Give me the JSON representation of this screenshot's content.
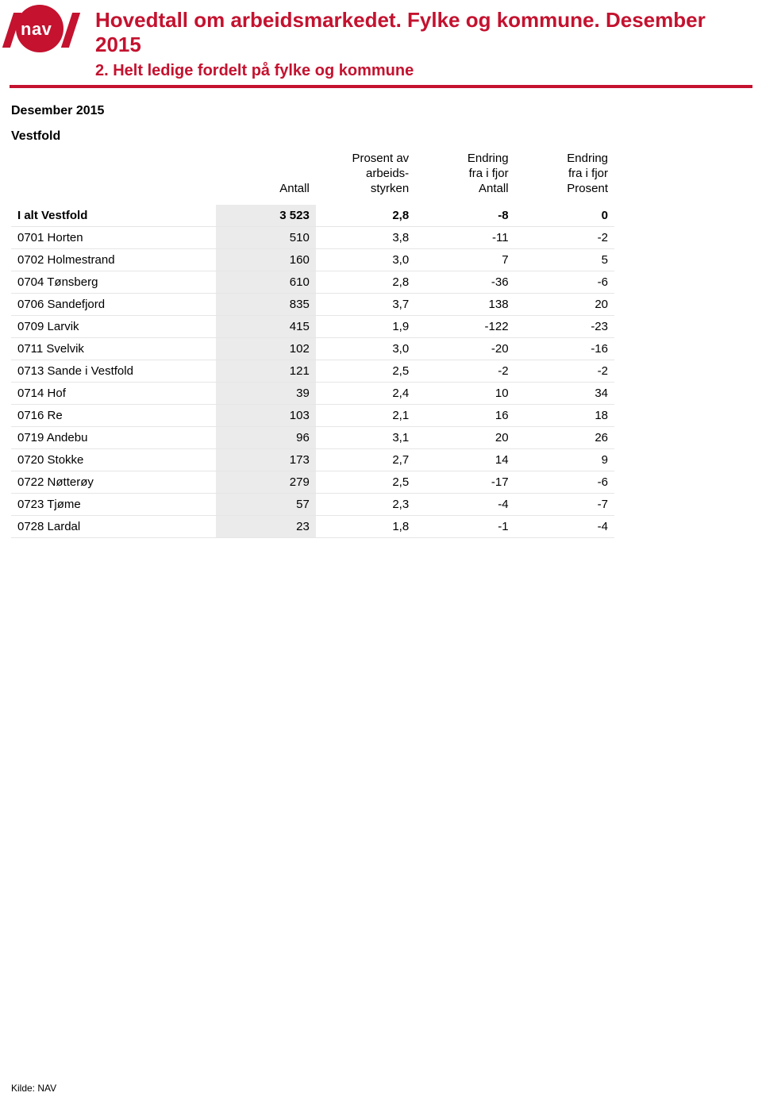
{
  "header": {
    "logo_text": "nav",
    "title": "Hovedtall om arbeidsmarkedet. Fylke og kommune. Desember 2015",
    "subtitle": "2. Helt ledige fordelt på fylke og kommune"
  },
  "period": "Desember 2015",
  "region": "Vestfold",
  "columns": {
    "c1": "",
    "c2": "Antall",
    "c3_l1": "Prosent av",
    "c3_l2": "arbeids-",
    "c3_l3": "styrken",
    "c4_l1": "Endring",
    "c4_l2": "fra i fjor",
    "c4_l3": "Antall",
    "c5_l1": "Endring",
    "c5_l2": "fra i fjor",
    "c5_l3": "Prosent"
  },
  "rows": [
    {
      "label": "I alt Vestfold",
      "antall": "3 523",
      "prosent": "2,8",
      "endr_antall": "-8",
      "endr_prosent": "0",
      "total": true
    },
    {
      "label": "0701 Horten",
      "antall": "510",
      "prosent": "3,8",
      "endr_antall": "-11",
      "endr_prosent": "-2"
    },
    {
      "label": "0702 Holmestrand",
      "antall": "160",
      "prosent": "3,0",
      "endr_antall": "7",
      "endr_prosent": "5"
    },
    {
      "label": "0704 Tønsberg",
      "antall": "610",
      "prosent": "2,8",
      "endr_antall": "-36",
      "endr_prosent": "-6"
    },
    {
      "label": "0706 Sandefjord",
      "antall": "835",
      "prosent": "3,7",
      "endr_antall": "138",
      "endr_prosent": "20"
    },
    {
      "label": "0709 Larvik",
      "antall": "415",
      "prosent": "1,9",
      "endr_antall": "-122",
      "endr_prosent": "-23"
    },
    {
      "label": "0711 Svelvik",
      "antall": "102",
      "prosent": "3,0",
      "endr_antall": "-20",
      "endr_prosent": "-16"
    },
    {
      "label": "0713 Sande i Vestfold",
      "antall": "121",
      "prosent": "2,5",
      "endr_antall": "-2",
      "endr_prosent": "-2"
    },
    {
      "label": "0714 Hof",
      "antall": "39",
      "prosent": "2,4",
      "endr_antall": "10",
      "endr_prosent": "34"
    },
    {
      "label": "0716 Re",
      "antall": "103",
      "prosent": "2,1",
      "endr_antall": "16",
      "endr_prosent": "18"
    },
    {
      "label": "0719 Andebu",
      "antall": "96",
      "prosent": "3,1",
      "endr_antall": "20",
      "endr_prosent": "26"
    },
    {
      "label": "0720 Stokke",
      "antall": "173",
      "prosent": "2,7",
      "endr_antall": "14",
      "endr_prosent": "9"
    },
    {
      "label": "0722 Nøtterøy",
      "antall": "279",
      "prosent": "2,5",
      "endr_antall": "-17",
      "endr_prosent": "-6"
    },
    {
      "label": "0723 Tjøme",
      "antall": "57",
      "prosent": "2,3",
      "endr_antall": "-4",
      "endr_prosent": "-7"
    },
    {
      "label": "0728 Lardal",
      "antall": "23",
      "prosent": "1,8",
      "endr_antall": "-1",
      "endr_prosent": "-4"
    }
  ],
  "footer": "Kilde: NAV",
  "colors": {
    "accent": "#c4122f",
    "row_border": "#e6e6e6",
    "antall_bg": "#ebebeb"
  }
}
